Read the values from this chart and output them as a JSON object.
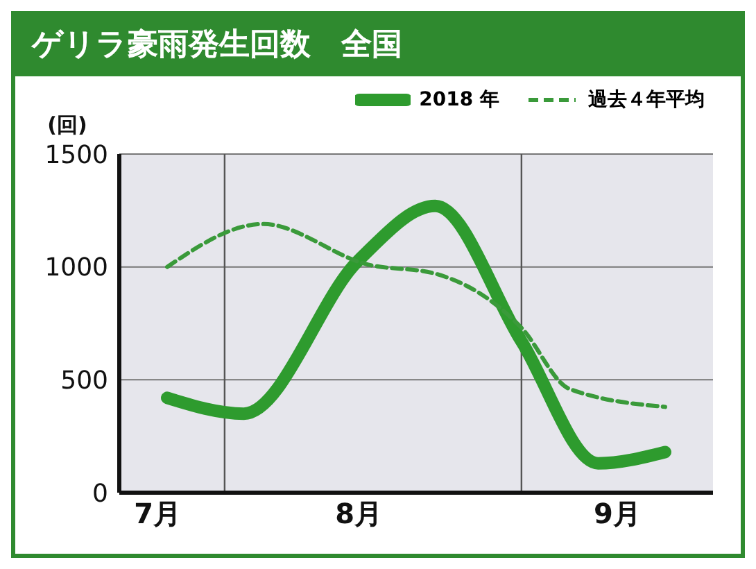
{
  "chart_data": {
    "type": "line",
    "title": "ゲリラ豪雨発生回数　全国",
    "ylabel": "(回)",
    "xlim": [
      "--07-21",
      "--09-21"
    ],
    "xticks": [
      {
        "value": "--07-25",
        "label": "7月"
      },
      {
        "value": "--08-15",
        "label": "8月"
      },
      {
        "value": "--09-11",
        "label": "9月"
      }
    ],
    "ylim": [
      0,
      1500
    ],
    "yticks": [
      0,
      500,
      1000,
      1500
    ],
    "series": [
      {
        "name": "2018 年",
        "color": "#2e9b2e",
        "line_style": "solid",
        "x": [
          "--07-26",
          "--08-03",
          "--08-15",
          "--08-23",
          "--09-01",
          "--09-09",
          "--09-16"
        ],
        "values": [
          420,
          350,
          1030,
          1270,
          670,
          130,
          180
        ]
      },
      {
        "name": "過去４年平均",
        "color": "#3a9a3a",
        "line_style": "dashed",
        "x": [
          "--07-26",
          "--08-05",
          "--08-16",
          "--08-23",
          "--09-01",
          "--09-06",
          "--09-16"
        ],
        "values": [
          1000,
          1190,
          1010,
          970,
          730,
          460,
          380
        ]
      }
    ],
    "ref_lines": [
      {
        "axis": "x",
        "value": "--08-01",
        "color": "#555555"
      },
      {
        "axis": "x",
        "value": "--09-01",
        "color": "#555555"
      }
    ],
    "grid": "y",
    "legend": "top right",
    "marker": "none"
  }
}
